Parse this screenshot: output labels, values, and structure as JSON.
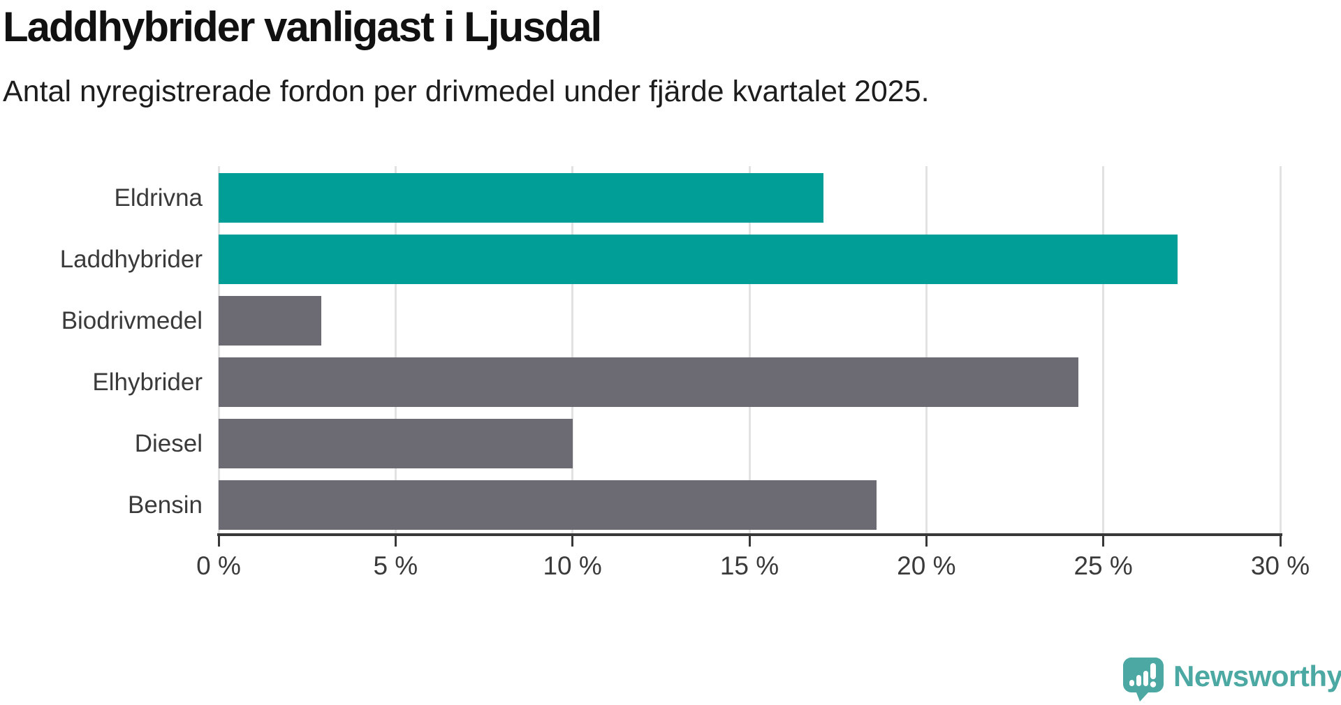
{
  "header": {
    "title": "Laddhybrider vanligast i Ljusdal",
    "subtitle": "Antal nyregistrerade fordon per drivmedel under fjärde kvartalet 2025."
  },
  "chart_data": {
    "type": "bar",
    "orientation": "horizontal",
    "title": "Laddhybrider vanligast i Ljusdal",
    "subtitle": "Antal nyregistrerade fordon per drivmedel under fjärde kvartalet 2025.",
    "categories": [
      "Eldrivna",
      "Laddhybrider",
      "Biodrivmedel",
      "Elhybrider",
      "Diesel",
      "Bensin"
    ],
    "values": [
      17.1,
      27.1,
      2.9,
      24.3,
      10.0,
      18.6
    ],
    "unit": "%",
    "bar_colors": [
      "#009E97",
      "#009E97",
      "#6C6A72",
      "#6C6A72",
      "#6C6A72",
      "#6C6A72"
    ],
    "highlight_color": "#009E97",
    "default_color": "#6C6A72",
    "xlabel": "",
    "ylabel": "",
    "xlim": [
      0,
      30
    ],
    "x_ticks": [
      0,
      5,
      10,
      15,
      20,
      25,
      30
    ],
    "x_tick_labels": [
      "0 %",
      "5 %",
      "10 %",
      "15 %",
      "20 %",
      "25 %",
      "30 %"
    ],
    "grid": true,
    "gridline_color": "#e2e2e2",
    "axis_color": "#383838",
    "legend": "none"
  },
  "footer": {
    "brand": "Newsworthy",
    "brand_color": "#4BA8A2",
    "logo_icon": "newsworthy-bubble-chart-icon"
  }
}
